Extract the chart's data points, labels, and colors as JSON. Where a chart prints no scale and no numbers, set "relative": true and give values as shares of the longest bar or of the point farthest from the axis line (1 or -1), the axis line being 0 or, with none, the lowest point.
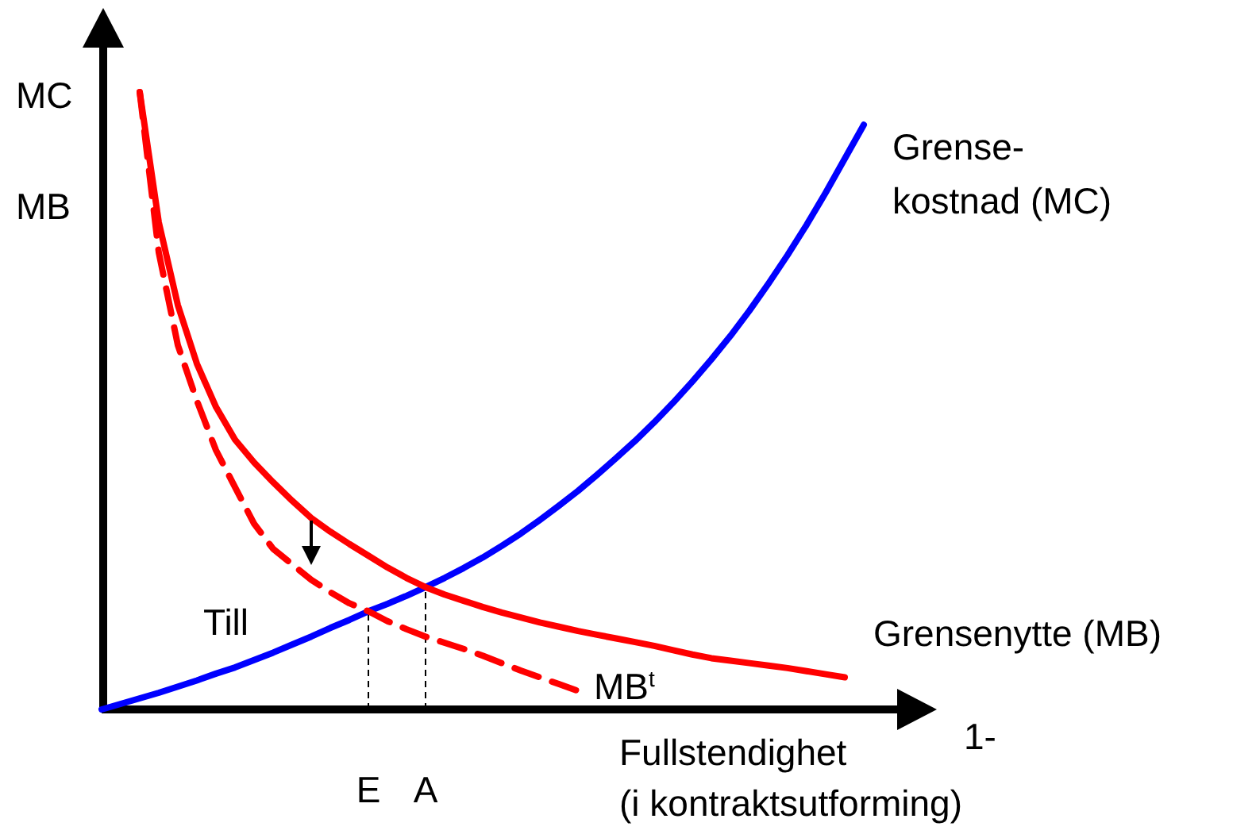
{
  "chart_data": {
    "type": "line",
    "relative": true,
    "xlabel": "Fullstendighet\n(i kontraktsutforming)",
    "ylabel": "MC\nMB",
    "legend": false,
    "categories": [
      null,
      null,
      null,
      null,
      null,
      null,
      null,
      null,
      null,
      null,
      null,
      null,
      null,
      null,
      "E",
      null,
      null,
      "A",
      null,
      null,
      null,
      null,
      null,
      null,
      null,
      null,
      null,
      null,
      null,
      null,
      null,
      null,
      null,
      null,
      null,
      null,
      null,
      null,
      null,
      null,
      null,
      null,
      null,
      null
    ],
    "series": [
      {
        "name": "Grense-\nkostnad (MC)",
        "color": "#0000ff",
        "line_style": "solid",
        "values": [
          0,
          0.009,
          0.018,
          0.027,
          0.037,
          0.047,
          0.058,
          0.068,
          0.08,
          0.092,
          0.105,
          0.118,
          0.132,
          0.145,
          0.159,
          0.171,
          0.184,
          0.198,
          0.213,
          0.229,
          0.246,
          0.265,
          0.285,
          0.307,
          0.33,
          0.354,
          0.38,
          0.407,
          0.435,
          0.465,
          0.497,
          0.531,
          0.567,
          0.605,
          0.646,
          0.69,
          0.736,
          0.785,
          0.837,
          0.892,
          0.947,
          null,
          null,
          null
        ]
      },
      {
        "name": "Grensenytte (MB)",
        "color": "#ff0000",
        "line_style": "solid",
        "values": [
          null,
          null,
          1,
          0.789,
          0.655,
          0.56,
          0.49,
          0.437,
          0.4,
          0.368,
          0.338,
          0.31,
          0.288,
          0.268,
          0.249,
          0.23,
          0.213,
          0.198,
          0.186,
          0.176,
          0.166,
          0.157,
          0.149,
          0.141,
          0.134,
          0.127,
          0.121,
          0.115,
          0.109,
          0.103,
          0.096,
          0.089,
          0.083,
          0.079,
          0.075,
          0.071,
          0.067,
          0.062,
          0.057,
          0.052,
          null,
          null,
          null,
          null
        ]
      },
      {
        "name": "MB$^{t}$",
        "color": "#ff0000",
        "line_style": "dashed",
        "values": [
          null,
          null,
          1,
          0.74,
          0.59,
          0.5,
          0.42,
          0.36,
          0.301,
          0.26,
          0.235,
          0.21,
          0.19,
          0.172,
          0.159,
          0.143,
          0.13,
          0.118,
          0.108,
          0.098,
          0.087,
          0.075,
          0.063,
          0.052,
          0.041,
          0.03,
          null,
          null,
          null,
          null,
          null,
          null,
          null,
          null,
          null,
          null,
          null,
          null,
          null,
          null,
          null,
          null,
          null,
          null
        ]
      }
    ],
    "annotations": [
      "Till",
      "1-"
    ]
  }
}
